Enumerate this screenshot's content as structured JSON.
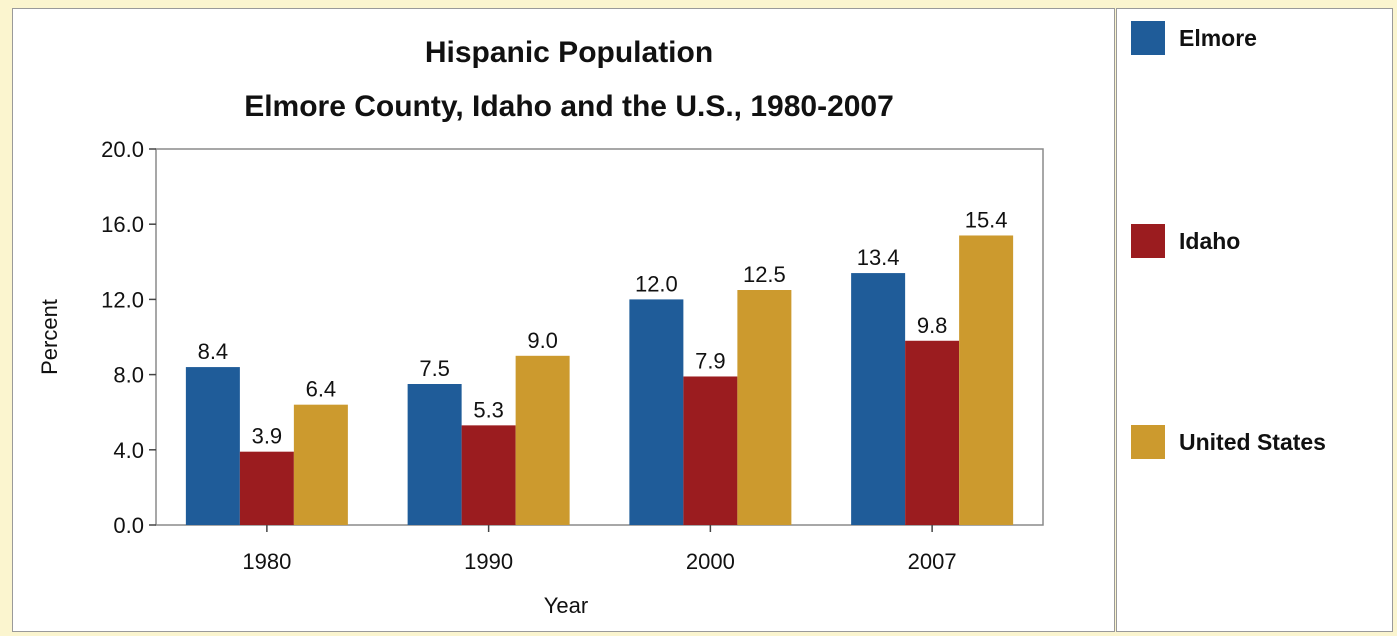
{
  "chart_data": {
    "type": "bar",
    "title": "Hispanic Population",
    "subtitle": "Elmore County, Idaho and the U.S., 1980-2007",
    "xlabel": "Year",
    "ylabel": "Percent",
    "ylim": [
      0,
      20
    ],
    "yticks": [
      "0.0",
      "4.0",
      "8.0",
      "12.0",
      "16.0",
      "20.0"
    ],
    "categories": [
      "1980",
      "1990",
      "2000",
      "2007"
    ],
    "series": [
      {
        "name": "Elmore",
        "color": "#1f5c99",
        "values": [
          8.4,
          7.5,
          12.0,
          13.4
        ],
        "labels": [
          "8.4",
          "7.5",
          "12.0",
          "13.4"
        ]
      },
      {
        "name": "Idaho",
        "color": "#9b1c1f",
        "values": [
          3.9,
          5.3,
          7.9,
          9.8
        ],
        "labels": [
          "3.9",
          "5.3",
          "7.9",
          "9.8"
        ]
      },
      {
        "name": "United States",
        "color": "#cc9a2e",
        "values": [
          6.4,
          9.0,
          12.5,
          15.4
        ],
        "labels": [
          "6.4",
          "9.0",
          "12.5",
          "15.4"
        ]
      }
    ],
    "grid": false,
    "legend_position": "right"
  }
}
